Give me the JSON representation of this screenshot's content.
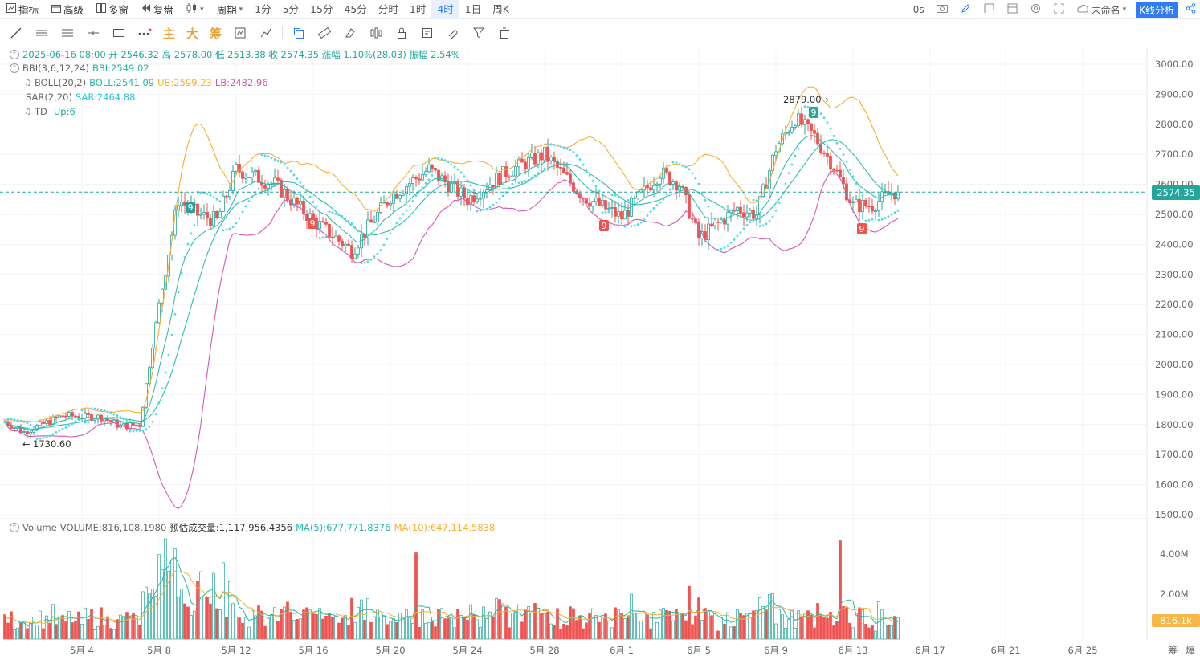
{
  "topbar": {
    "left": [
      {
        "icon": "indicator-icon",
        "label": "指标"
      },
      {
        "icon": "advanced-icon",
        "label": "高级"
      },
      {
        "icon": "multiwindow-icon",
        "label": "多窗"
      },
      {
        "icon": "replay-icon",
        "label": "复盘"
      },
      {
        "icon": "candle-type-icon",
        "label": ""
      },
      {
        "icon": "",
        "label": "周期"
      }
    ],
    "periods": [
      "1分",
      "5分",
      "15分",
      "45分",
      "分时",
      "1时",
      "4时",
      "1日",
      "周K"
    ],
    "active_period": "4时",
    "countdown": "0s",
    "layout_name": "未命名",
    "kline_button": "K线分析"
  },
  "toolbar2": {
    "cn_tools": [
      "主",
      "大",
      "筹"
    ]
  },
  "legend": {
    "ohlc": "2025-06-16 08:00  开 2546.32  高 2578.00  低 2513.38  收 2574.35  涨幅 1.10%(28.03)  振幅 2.54%",
    "bbi_name": "BBI(3,6,12,24)",
    "bbi_val": "BBI:2549.02",
    "boll_name": "BOLL(20,2)",
    "boll_mid": "BOLL:2541.09",
    "boll_ub": "UB:2599.23",
    "boll_lb": "LB:2482.96",
    "sar_name": "SAR(2,20)",
    "sar_val": "SAR:2464.88",
    "td_name": "TD",
    "td_val": "Up:6",
    "vol_name": "Volume",
    "vol_val": "VOLUME:816,108.1980",
    "vol_est": "预估成交量:1,117,956.4356",
    "vol_ma5": "MA(5):677,771.8376",
    "vol_ma10": "MA(10):647,114.5838"
  },
  "price_axis": [
    "3000.00",
    "2900.00",
    "2800.00",
    "2700.00",
    "2600.00",
    "2500.00",
    "2400.00",
    "2300.00",
    "2200.00",
    "2100.00",
    "2000.00",
    "1900.00",
    "1800.00",
    "1700.00",
    "1600.00",
    "1500.00"
  ],
  "volume_axis": [
    "4.00M",
    "2.00M"
  ],
  "current_price": "2574.35",
  "current_volume": "816.1k",
  "date_axis": [
    "5月 4",
    "5月 8",
    "5月 12",
    "5月 16",
    "5月 20",
    "5月 24",
    "5月 28",
    "6月 1",
    "6月 5",
    "6月 9",
    "6月 13",
    "6月 17",
    "6月 21",
    "6月 25"
  ],
  "max_label": "2879.00",
  "min_label": "1730.60",
  "td_markers": [
    "9",
    "9",
    "9",
    "9",
    "9"
  ],
  "bottom_right": [
    "筹",
    "爆"
  ],
  "colors": {
    "up": "#26a69a",
    "down": "#ef5350",
    "boll_ub": "#f5b031",
    "boll_lb": "#d25ab4",
    "boll_mid": "#2bc0b0",
    "sar": "#4fd9e8",
    "bbi": "#26b8a6"
  },
  "chart_data": {
    "type": "candlestick",
    "price_range": [
      1500,
      3000
    ],
    "key_points": [
      {
        "x": "5月 1",
        "y": 1810
      },
      {
        "x": "5月 2",
        "y": 1775
      },
      {
        "x": "5月 4",
        "y": 1830
      },
      {
        "x": "5月 6",
        "y": 1825
      },
      {
        "x": "5月 7",
        "y": 1795
      },
      {
        "x": "5月 8",
        "y": 1800
      },
      {
        "x": "5月 9",
        "y": 2200
      },
      {
        "x": "5月 10",
        "y": 2550
      },
      {
        "x": "5月 11",
        "y": 2500
      },
      {
        "x": "5月 12",
        "y": 2480
      },
      {
        "x": "5月 13",
        "y": 2650
      },
      {
        "x": "5月 15",
        "y": 2600
      },
      {
        "x": "5月 17",
        "y": 2480
      },
      {
        "x": "5月 19",
        "y": 2380
      },
      {
        "x": "5月 21",
        "y": 2560
      },
      {
        "x": "5月 23",
        "y": 2650
      },
      {
        "x": "5月 25",
        "y": 2550
      },
      {
        "x": "5月 27",
        "y": 2640
      },
      {
        "x": "5月 29",
        "y": 2700
      },
      {
        "x": "5月 31",
        "y": 2560
      },
      {
        "x": "6月 2",
        "y": 2490
      },
      {
        "x": "6月 4",
        "y": 2640
      },
      {
        "x": "6月 5",
        "y": 2600
      },
      {
        "x": "6月 6",
        "y": 2420
      },
      {
        "x": "6月 8",
        "y": 2520
      },
      {
        "x": "6月 9",
        "y": 2500
      },
      {
        "x": "6月 10",
        "y": 2720
      },
      {
        "x": "6月 11",
        "y": 2820
      },
      {
        "x": "6月 12",
        "y": 2760
      },
      {
        "x": "6月 13",
        "y": 2660
      },
      {
        "x": "6月 14",
        "y": 2530
      },
      {
        "x": "6月 15",
        "y": 2530
      },
      {
        "x": "6月 16",
        "y": 2574
      }
    ],
    "volume_peaks_m": [
      {
        "x": "5月 9",
        "y": 5.0
      },
      {
        "x": "5月 22",
        "y": 4.3
      },
      {
        "x": "6月 13",
        "y": 4.9
      }
    ]
  }
}
